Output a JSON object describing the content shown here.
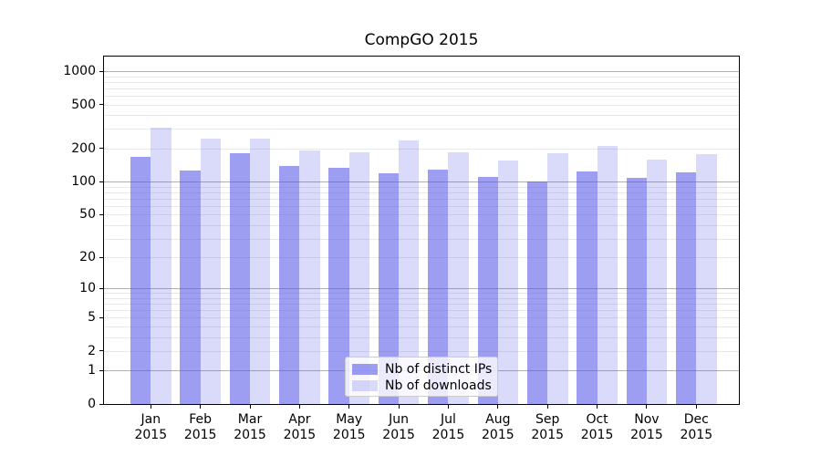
{
  "chart_data": {
    "type": "bar",
    "title": "CompGO 2015",
    "categories": [
      "Jan",
      "Feb",
      "Mar",
      "Apr",
      "May",
      "Jun",
      "Jul",
      "Aug",
      "Sep",
      "Oct",
      "Nov",
      "Dec"
    ],
    "category_year": "2015",
    "series": [
      {
        "name": "Nb of distinct IPs",
        "color": "rgba(86,86,233,0.58)",
        "values": [
          168,
          127,
          180,
          139,
          134,
          120,
          128,
          110,
          100,
          123,
          109,
          121
        ]
      },
      {
        "name": "Nb of downloads",
        "color": "rgba(86,86,233,0.22)",
        "values": [
          306,
          248,
          244,
          192,
          183,
          236,
          185,
          156,
          180,
          211,
          160,
          177
        ]
      }
    ],
    "y_axis": {
      "scale": "log1p",
      "range": [
        0,
        1000
      ],
      "ticks": [
        0,
        1,
        2,
        5,
        10,
        20,
        50,
        100,
        200,
        500,
        1000
      ],
      "major_ticks": [
        1,
        10,
        100,
        1000
      ],
      "minor_gridlines": [
        3,
        4,
        6,
        7,
        8,
        9,
        30,
        40,
        60,
        70,
        80,
        90,
        300,
        400,
        600,
        700,
        800,
        900
      ]
    },
    "grid": {
      "major_color": "#b0b0b0",
      "minor_color": "#e8e8e8"
    },
    "legend": {
      "position": "inside-bottom-center"
    },
    "colors": {
      "spine": "#000000",
      "text": "#000000",
      "background": "#ffffff"
    }
  }
}
